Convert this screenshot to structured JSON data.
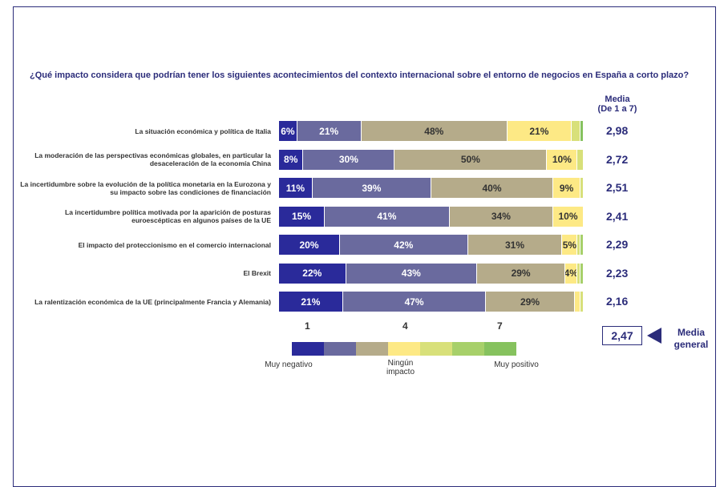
{
  "question": "¿Qué impacto considera que podrían tener los siguientes acontecimientos del contexto internacional sobre el entorno de negocios en España a corto plazo?",
  "media_header": {
    "line1": "Media",
    "line2": "(De 1 a 7)"
  },
  "colors": [
    "#2a2a9a",
    "#6a6a9e",
    "#b5ab8a",
    "#fde985",
    "#d8e07a",
    "#a7d06a",
    "#86c25e"
  ],
  "chart_data": {
    "type": "bar",
    "orientation": "horizontal",
    "stacked": true,
    "categories": [
      "La situación económica y política de Italia",
      "La moderación de las perspectivas económicas globales, en particular la desaceleración de la economía China",
      "La incertidumbre sobre la evolución de la política monetaria en la Eurozona y su impacto sobre las condiciones de financiación",
      "La incertidumbre política motivada por la aparición de posturas euroescépticas en algunos países de la UE",
      "El impacto del proteccionismo en el comercio internacional",
      "El Brexit",
      "La ralentización económica de la UE (principalmente Francia y Alemania)"
    ],
    "series": [
      {
        "values": [
          6,
          8,
          11,
          15,
          20,
          22,
          21
        ]
      },
      {
        "values": [
          21,
          30,
          39,
          41,
          42,
          43,
          47
        ]
      },
      {
        "values": [
          48,
          50,
          40,
          34,
          31,
          29,
          29
        ]
      },
      {
        "values": [
          21,
          10,
          9,
          10,
          5,
          4,
          2
        ]
      },
      {
        "values": [
          3,
          2,
          1,
          0,
          1,
          1,
          1
        ]
      },
      {
        "values": [
          0,
          0,
          0,
          0,
          1,
          1,
          0
        ]
      },
      {
        "values": [
          1,
          0,
          0,
          0,
          0,
          0,
          0
        ]
      }
    ],
    "labels": [
      [
        "6%",
        "21%",
        "48%",
        "21%",
        "",
        "",
        ""
      ],
      [
        "8%",
        "30%",
        "50%",
        "10%",
        "",
        "",
        ""
      ],
      [
        "11%",
        "39%",
        "40%",
        "9%",
        "",
        "",
        ""
      ],
      [
        "15%",
        "41%",
        "34%",
        "10%",
        "",
        "",
        ""
      ],
      [
        "20%",
        "42%",
        "31%",
        "5%",
        "",
        "",
        ""
      ],
      [
        "22%",
        "43%",
        "29%",
        "4%",
        "",
        "",
        ""
      ],
      [
        "21%",
        "47%",
        "29%",
        "",
        "",
        "",
        ""
      ]
    ],
    "means": [
      "2,98",
      "2,72",
      "2,51",
      "2,41",
      "2,29",
      "2,23",
      "2,16"
    ],
    "scale_ticks": [
      "1",
      "4",
      "7"
    ],
    "legend_labels": {
      "left": "Muy negativo",
      "middle": "Ningún impacto",
      "right": "Muy positivo"
    },
    "overall_mean": {
      "value": "2,47",
      "label": "Media general"
    }
  }
}
